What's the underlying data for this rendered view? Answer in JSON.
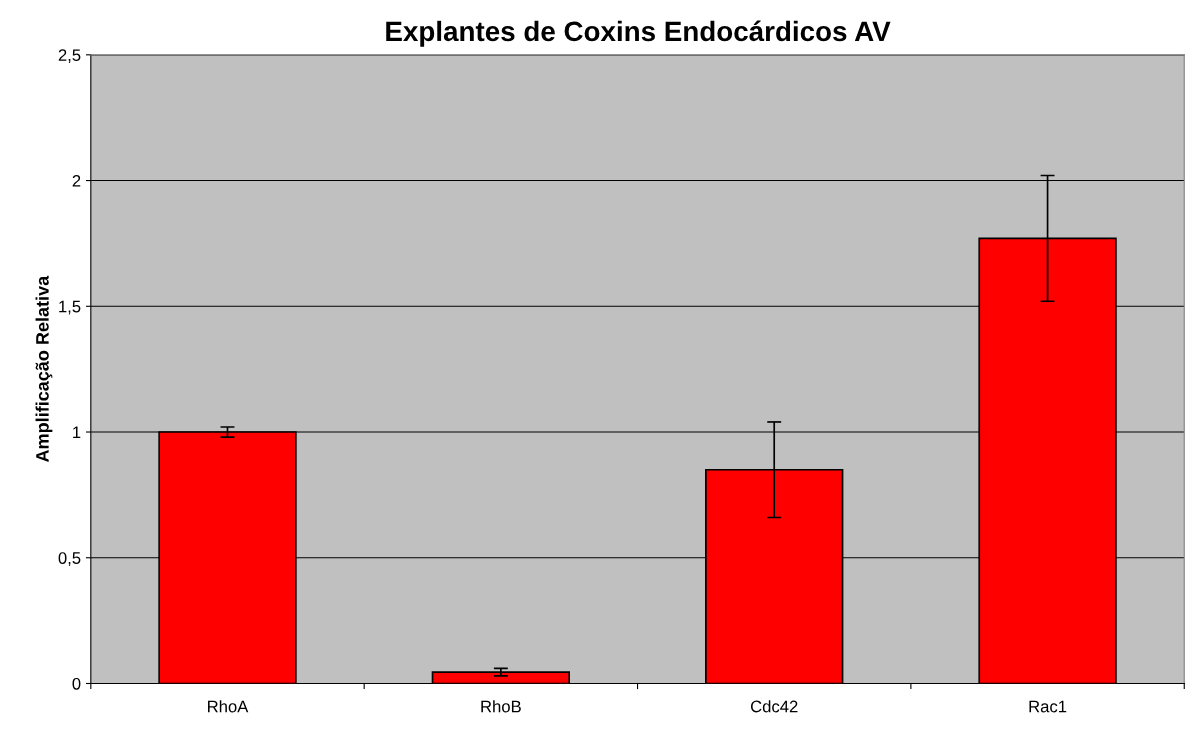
{
  "chart_data": {
    "type": "bar",
    "title": "Explantes de Coxins Endocárdicos AV",
    "ylabel": "Amplificação Relativa",
    "categories": [
      "RhoA",
      "RhoB",
      "Cdc42",
      "Rac1"
    ],
    "values": [
      1.0,
      0.045,
      0.85,
      1.77
    ],
    "errors": [
      0.02,
      0.015,
      0.19,
      0.25
    ],
    "color": "#ff0000",
    "ylim": [
      0,
      2.5
    ],
    "yticks": [
      {
        "value": 0,
        "label": "0"
      },
      {
        "value": 0.5,
        "label": "0,5"
      },
      {
        "value": 1,
        "label": "1"
      },
      {
        "value": 1.5,
        "label": "1,5"
      },
      {
        "value": 2,
        "label": "2"
      },
      {
        "value": 2.5,
        "label": "2,5"
      }
    ],
    "grid": "y",
    "legend": false
  }
}
